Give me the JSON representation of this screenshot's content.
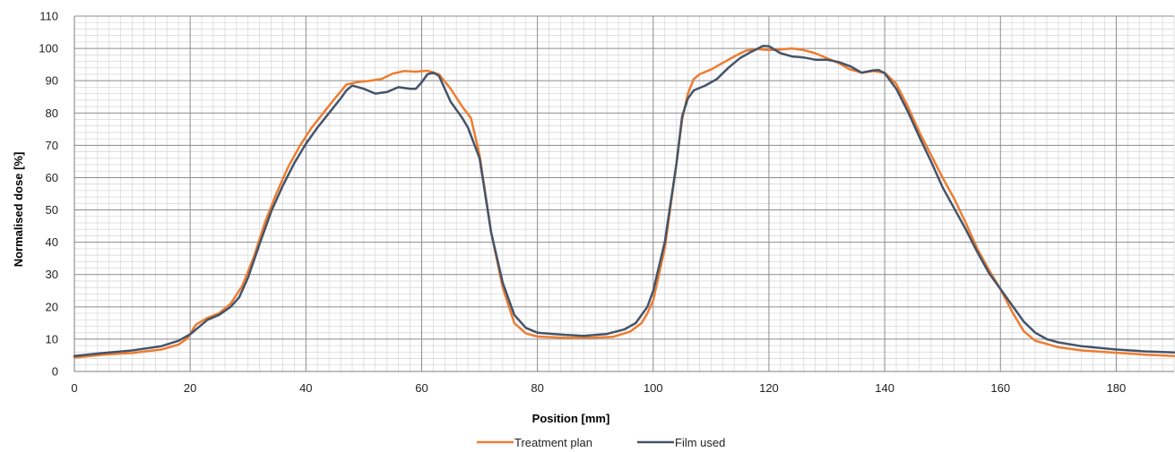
{
  "chart_data": {
    "type": "line",
    "title": "",
    "xlabel": "Position [mm]",
    "ylabel": "Normalised dose [%]",
    "xlim": [
      0,
      190
    ],
    "ylim": [
      0,
      110
    ],
    "x_ticks": [
      "0",
      "20",
      "40",
      "60",
      "80",
      "100",
      "120",
      "140",
      "160",
      "180"
    ],
    "y_ticks": [
      "0",
      "10",
      "20",
      "30",
      "40",
      "50",
      "60",
      "70",
      "80",
      "90",
      "100",
      "110"
    ],
    "grid": {
      "major": true,
      "minor": true
    },
    "legend_position": "bottom",
    "series": [
      {
        "name": "Treatment plan",
        "color": "#ED7D31",
        "points": [
          [
            0,
            4.3
          ],
          [
            5,
            5.2
          ],
          [
            10,
            5.7
          ],
          [
            15,
            6.8
          ],
          [
            18,
            8.3
          ],
          [
            19.5,
            10.2
          ],
          [
            21,
            14.5
          ],
          [
            23,
            16.6
          ],
          [
            25,
            18.0
          ],
          [
            27,
            21.0
          ],
          [
            29,
            26.5
          ],
          [
            31,
            35.5
          ],
          [
            33,
            46.5
          ],
          [
            35,
            55.5
          ],
          [
            37,
            63.5
          ],
          [
            39,
            70.0
          ],
          [
            41,
            75.5
          ],
          [
            43,
            80.0
          ],
          [
            45,
            84.5
          ],
          [
            47,
            88.8
          ],
          [
            49,
            89.6
          ],
          [
            51,
            90.0
          ],
          [
            53,
            90.5
          ],
          [
            55,
            92.2
          ],
          [
            57,
            93.0
          ],
          [
            59,
            92.8
          ],
          [
            61,
            93.1
          ],
          [
            63,
            92.0
          ],
          [
            65,
            87.5
          ],
          [
            67,
            82.0
          ],
          [
            68.5,
            78.5
          ],
          [
            70,
            67.0
          ],
          [
            72,
            43.0
          ],
          [
            74,
            26.0
          ],
          [
            76,
            15.0
          ],
          [
            78,
            11.8
          ],
          [
            80,
            10.8
          ],
          [
            85,
            10.4
          ],
          [
            90,
            10.5
          ],
          [
            93,
            10.7
          ],
          [
            96,
            12.3
          ],
          [
            98,
            15.0
          ],
          [
            99,
            18.0
          ],
          [
            100,
            22.0
          ],
          [
            102,
            38.0
          ],
          [
            104,
            64.0
          ],
          [
            105,
            78.0
          ],
          [
            106,
            86.0
          ],
          [
            107,
            90.5
          ],
          [
            108,
            92.0
          ],
          [
            110,
            93.5
          ],
          [
            112,
            95.5
          ],
          [
            114,
            97.5
          ],
          [
            116,
            99.3
          ],
          [
            118,
            99.8
          ],
          [
            120,
            99.5
          ],
          [
            122,
            99.7
          ],
          [
            124,
            100.0
          ],
          [
            126,
            99.5
          ],
          [
            128,
            98.5
          ],
          [
            130,
            97.0
          ],
          [
            132,
            95.5
          ],
          [
            134,
            93.5
          ],
          [
            136,
            92.5
          ],
          [
            138,
            93.0
          ],
          [
            140,
            92.5
          ],
          [
            142,
            89.0
          ],
          [
            144,
            82.0
          ],
          [
            146,
            74.0
          ],
          [
            148,
            67.0
          ],
          [
            150,
            60.0
          ],
          [
            152,
            53.5
          ],
          [
            154,
            46.0
          ],
          [
            156,
            38.0
          ],
          [
            158,
            31.5
          ],
          [
            160,
            25.5
          ],
          [
            162,
            18.5
          ],
          [
            164,
            12.5
          ],
          [
            166,
            9.5
          ],
          [
            170,
            7.5
          ],
          [
            174,
            6.5
          ],
          [
            180,
            5.8
          ],
          [
            185,
            5.2
          ],
          [
            190,
            4.8
          ]
        ]
      },
      {
        "name": "Film used",
        "color": "#44546A",
        "points": [
          [
            0,
            4.8
          ],
          [
            5,
            5.7
          ],
          [
            10,
            6.5
          ],
          [
            15,
            7.8
          ],
          [
            18,
            9.5
          ],
          [
            20,
            11.5
          ],
          [
            22,
            14.5
          ],
          [
            23,
            16.0
          ],
          [
            25,
            17.5
          ],
          [
            27,
            20.0
          ],
          [
            28.5,
            23.0
          ],
          [
            30,
            29.0
          ],
          [
            32,
            39.5
          ],
          [
            34,
            49.5
          ],
          [
            36,
            57.5
          ],
          [
            38,
            64.5
          ],
          [
            40,
            70.5
          ],
          [
            42,
            75.5
          ],
          [
            44,
            80.0
          ],
          [
            46,
            84.5
          ],
          [
            47,
            87.0
          ],
          [
            48,
            88.5
          ],
          [
            50,
            87.5
          ],
          [
            52,
            86.0
          ],
          [
            54,
            86.5
          ],
          [
            56,
            88.0
          ],
          [
            58,
            87.5
          ],
          [
            59,
            87.5
          ],
          [
            60,
            89.5
          ],
          [
            61,
            92.0
          ],
          [
            62,
            92.5
          ],
          [
            63,
            91.5
          ],
          [
            65,
            83.5
          ],
          [
            67,
            78.5
          ],
          [
            68,
            75.5
          ],
          [
            70,
            66.0
          ],
          [
            72,
            43.0
          ],
          [
            74,
            27.5
          ],
          [
            76,
            17.5
          ],
          [
            78,
            13.5
          ],
          [
            80,
            12.0
          ],
          [
            85,
            11.3
          ],
          [
            88,
            11.0
          ],
          [
            92,
            11.6
          ],
          [
            95,
            13.0
          ],
          [
            97,
            15.0
          ],
          [
            99,
            20.0
          ],
          [
            100,
            25.0
          ],
          [
            102,
            40.0
          ],
          [
            104,
            64.0
          ],
          [
            105,
            79.0
          ],
          [
            106,
            84.5
          ],
          [
            107,
            87.0
          ],
          [
            109,
            88.5
          ],
          [
            111,
            90.5
          ],
          [
            113,
            94.0
          ],
          [
            115,
            97.0
          ],
          [
            117,
            99.0
          ],
          [
            119,
            100.8
          ],
          [
            120,
            100.7
          ],
          [
            122,
            98.5
          ],
          [
            124,
            97.5
          ],
          [
            126,
            97.2
          ],
          [
            128,
            96.5
          ],
          [
            130,
            96.5
          ],
          [
            132,
            95.8
          ],
          [
            134,
            94.5
          ],
          [
            136,
            92.5
          ],
          [
            138,
            93.2
          ],
          [
            139,
            93.3
          ],
          [
            140,
            92.3
          ],
          [
            142,
            87.5
          ],
          [
            144,
            80.5
          ],
          [
            146,
            72.5
          ],
          [
            148,
            65.0
          ],
          [
            150,
            57.0
          ],
          [
            152,
            50.5
          ],
          [
            154,
            44.0
          ],
          [
            156,
            37.0
          ],
          [
            158,
            30.5
          ],
          [
            160,
            25.5
          ],
          [
            162,
            20.5
          ],
          [
            164,
            15.5
          ],
          [
            166,
            12.0
          ],
          [
            168,
            10.0
          ],
          [
            170,
            9.0
          ],
          [
            174,
            7.8
          ],
          [
            180,
            6.8
          ],
          [
            185,
            6.2
          ],
          [
            190,
            5.9
          ]
        ]
      }
    ]
  }
}
